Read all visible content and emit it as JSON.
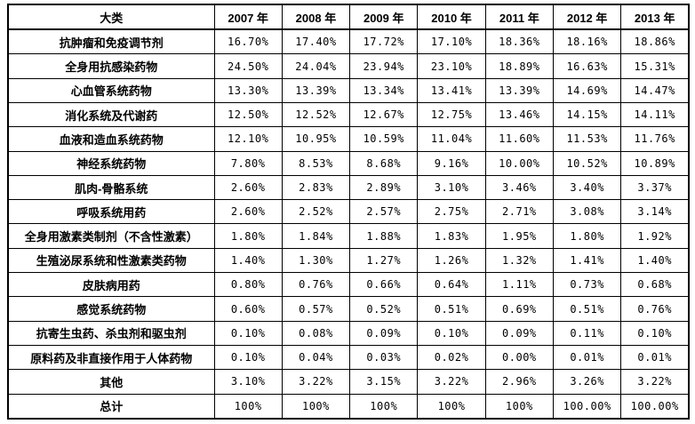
{
  "colors": {
    "background": "#ffffff",
    "border": "#000000",
    "text": "#000000"
  },
  "table": {
    "header": [
      "大类",
      "2007 年",
      "2008 年",
      "2009 年",
      "2010 年",
      "2011 年",
      "2012 年",
      "2013 年"
    ],
    "rows": [
      {
        "category": "抗肿瘤和免疫调节剂",
        "values": [
          "16.70%",
          "17.40%",
          "17.72%",
          "17.10%",
          "18.36%",
          "18.16%",
          "18.86%"
        ]
      },
      {
        "category": "全身用抗感染药物",
        "values": [
          "24.50%",
          "24.04%",
          "23.94%",
          "23.10%",
          "18.89%",
          "16.63%",
          "15.31%"
        ]
      },
      {
        "category": "心血管系统药物",
        "values": [
          "13.30%",
          "13.39%",
          "13.34%",
          "13.41%",
          "13.39%",
          "14.69%",
          "14.47%"
        ]
      },
      {
        "category": "消化系统及代谢药",
        "values": [
          "12.50%",
          "12.52%",
          "12.67%",
          "12.75%",
          "13.46%",
          "14.15%",
          "14.11%"
        ]
      },
      {
        "category": "血液和造血系统药物",
        "values": [
          "12.10%",
          "10.95%",
          "10.59%",
          "11.04%",
          "11.60%",
          "11.53%",
          "11.76%"
        ]
      },
      {
        "category": "神经系统药物",
        "values": [
          "7.80%",
          "8.53%",
          "8.68%",
          "9.16%",
          "10.00%",
          "10.52%",
          "10.89%"
        ]
      },
      {
        "category": "肌肉-骨骼系统",
        "values": [
          "2.60%",
          "2.83%",
          "2.89%",
          "3.10%",
          "3.46%",
          "3.40%",
          "3.37%"
        ]
      },
      {
        "category": "呼吸系统用药",
        "values": [
          "2.60%",
          "2.52%",
          "2.57%",
          "2.75%",
          "2.71%",
          "3.08%",
          "3.14%"
        ]
      },
      {
        "category": "全身用激素类制剂（不含性激素）",
        "values": [
          "1.80%",
          "1.84%",
          "1.88%",
          "1.83%",
          "1.95%",
          "1.80%",
          "1.92%"
        ]
      },
      {
        "category": "生殖泌尿系统和性激素类药物",
        "values": [
          "1.40%",
          "1.30%",
          "1.27%",
          "1.26%",
          "1.32%",
          "1.41%",
          "1.40%"
        ]
      },
      {
        "category": "皮肤病用药",
        "values": [
          "0.80%",
          "0.76%",
          "0.66%",
          "0.64%",
          "1.11%",
          "0.73%",
          "0.68%"
        ]
      },
      {
        "category": "感觉系统药物",
        "values": [
          "0.60%",
          "0.57%",
          "0.52%",
          "0.51%",
          "0.69%",
          "0.51%",
          "0.76%"
        ]
      },
      {
        "category": "抗寄生虫药、杀虫剂和驱虫剂",
        "values": [
          "0.10%",
          "0.08%",
          "0.09%",
          "0.10%",
          "0.09%",
          "0.11%",
          "0.10%"
        ]
      },
      {
        "category": "原料药及非直接作用于人体药物",
        "values": [
          "0.10%",
          "0.04%",
          "0.03%",
          "0.02%",
          "0.00%",
          "0.01%",
          "0.01%"
        ]
      },
      {
        "category": "其他",
        "values": [
          "3.10%",
          "3.22%",
          "3.15%",
          "3.22%",
          "2.96%",
          "3.26%",
          "3.22%"
        ]
      },
      {
        "category": "总计",
        "values": [
          "100%",
          "100%",
          "100%",
          "100%",
          "100%",
          "100.00%",
          "100.00%"
        ]
      }
    ]
  },
  "chart_data": {
    "type": "table",
    "categories": [
      "抗肿瘤和免疫调节剂",
      "全身用抗感染药物",
      "心血管系统药物",
      "消化系统及代谢药",
      "血液和造血系统药物",
      "神经系统药物",
      "肌肉-骨骼系统",
      "呼吸系统用药",
      "全身用激素类制剂（不含性激素）",
      "生殖泌尿系统和性激素类药物",
      "皮肤病用药",
      "感觉系统药物",
      "抗寄生虫药、杀虫剂和驱虫剂",
      "原料药及非直接作用于人体药物",
      "其他"
    ],
    "unit": "percent",
    "series": [
      {
        "name": "2007年",
        "values": [
          16.7,
          24.5,
          13.3,
          12.5,
          12.1,
          7.8,
          2.6,
          2.6,
          1.8,
          1.4,
          0.8,
          0.6,
          0.1,
          0.1,
          3.1
        ],
        "total": 100
      },
      {
        "name": "2008年",
        "values": [
          17.4,
          24.04,
          13.39,
          12.52,
          10.95,
          8.53,
          2.83,
          2.52,
          1.84,
          1.3,
          0.76,
          0.57,
          0.08,
          0.04,
          3.22
        ],
        "total": 100
      },
      {
        "name": "2009年",
        "values": [
          17.72,
          23.94,
          13.34,
          12.67,
          10.59,
          8.68,
          2.89,
          2.57,
          1.88,
          1.27,
          0.66,
          0.52,
          0.09,
          0.03,
          3.15
        ],
        "total": 100
      },
      {
        "name": "2010年",
        "values": [
          17.1,
          23.1,
          13.41,
          12.75,
          11.04,
          9.16,
          3.1,
          2.75,
          1.83,
          1.26,
          0.64,
          0.51,
          0.1,
          0.02,
          3.22
        ],
        "total": 100
      },
      {
        "name": "2011年",
        "values": [
          18.36,
          18.89,
          13.39,
          13.46,
          11.6,
          10.0,
          3.46,
          2.71,
          1.95,
          1.32,
          1.11,
          0.69,
          0.09,
          0.0,
          2.96
        ],
        "total": 100
      },
      {
        "name": "2012年",
        "values": [
          18.16,
          16.63,
          14.69,
          14.15,
          11.53,
          10.52,
          3.4,
          3.08,
          1.8,
          1.41,
          0.73,
          0.51,
          0.11,
          0.01,
          3.26
        ],
        "total": 100
      },
      {
        "name": "2013年",
        "values": [
          18.86,
          15.31,
          14.47,
          14.11,
          11.76,
          10.89,
          3.37,
          3.14,
          1.92,
          1.4,
          0.68,
          0.76,
          0.1,
          0.01,
          3.22
        ],
        "total": 100
      }
    ],
    "first_column_header": "大类",
    "totals_row_label": "总计"
  }
}
